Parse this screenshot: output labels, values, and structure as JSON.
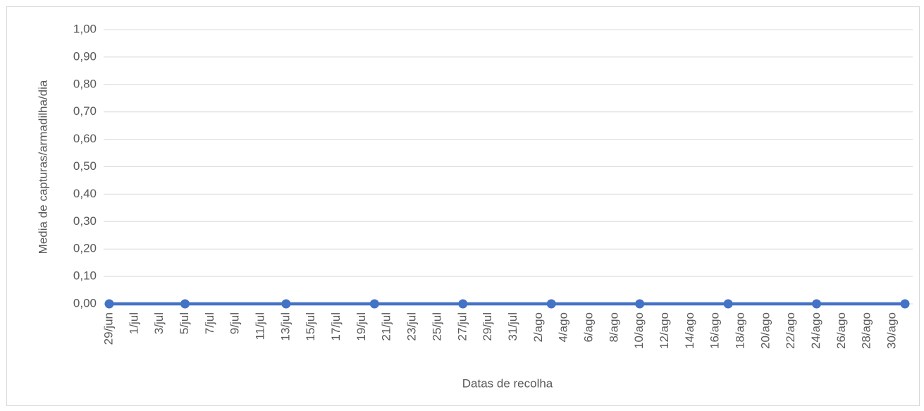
{
  "chart_data": {
    "type": "line",
    "x_label": "Datas de recolha",
    "y_label": "Media de capturas/armadilha/dia",
    "x": [
      "29/jun",
      "5/jul",
      "13/jul",
      "20/jul",
      "27/jul",
      "3/ago",
      "10/ago",
      "17/ago",
      "24/ago",
      "31/ago"
    ],
    "series": [
      {
        "name": "Media",
        "color": "#4472c4",
        "values": [
          0,
          0,
          0,
          0,
          0,
          0,
          0,
          0,
          0,
          0
        ]
      }
    ],
    "xlim": [
      "29/jun",
      "31/ago"
    ],
    "xticks": [
      "29/jun",
      "1/jul",
      "3/jul",
      "5/jul",
      "7/jul",
      "9/jul",
      "11/jul",
      "13/jul",
      "15/jul",
      "17/jul",
      "19/jul",
      "21/jul",
      "23/jul",
      "25/jul",
      "27/jul",
      "29/jul",
      "31/jul",
      "2/ago",
      "4/ago",
      "6/ago",
      "8/ago",
      "10/ago",
      "12/ago",
      "14/ago",
      "16/ago",
      "18/ago",
      "20/ago",
      "22/ago",
      "24/ago",
      "26/ago",
      "28/ago",
      "30/ago"
    ],
    "ylim": [
      0,
      1
    ],
    "yticks": [
      {
        "value": 0,
        "label": "0,00"
      },
      {
        "value": 0.1,
        "label": "0,10"
      },
      {
        "value": 0.2,
        "label": "0,20"
      },
      {
        "value": 0.3,
        "label": "0,30"
      },
      {
        "value": 0.4,
        "label": "0,40"
      },
      {
        "value": 0.5,
        "label": "0,50"
      },
      {
        "value": 0.6,
        "label": "0,60"
      },
      {
        "value": 0.7,
        "label": "0,70"
      },
      {
        "value": 0.8,
        "label": "0,80"
      },
      {
        "value": 0.9,
        "label": "0,90"
      },
      {
        "value": 1,
        "label": "1,00"
      }
    ],
    "grid": true
  }
}
